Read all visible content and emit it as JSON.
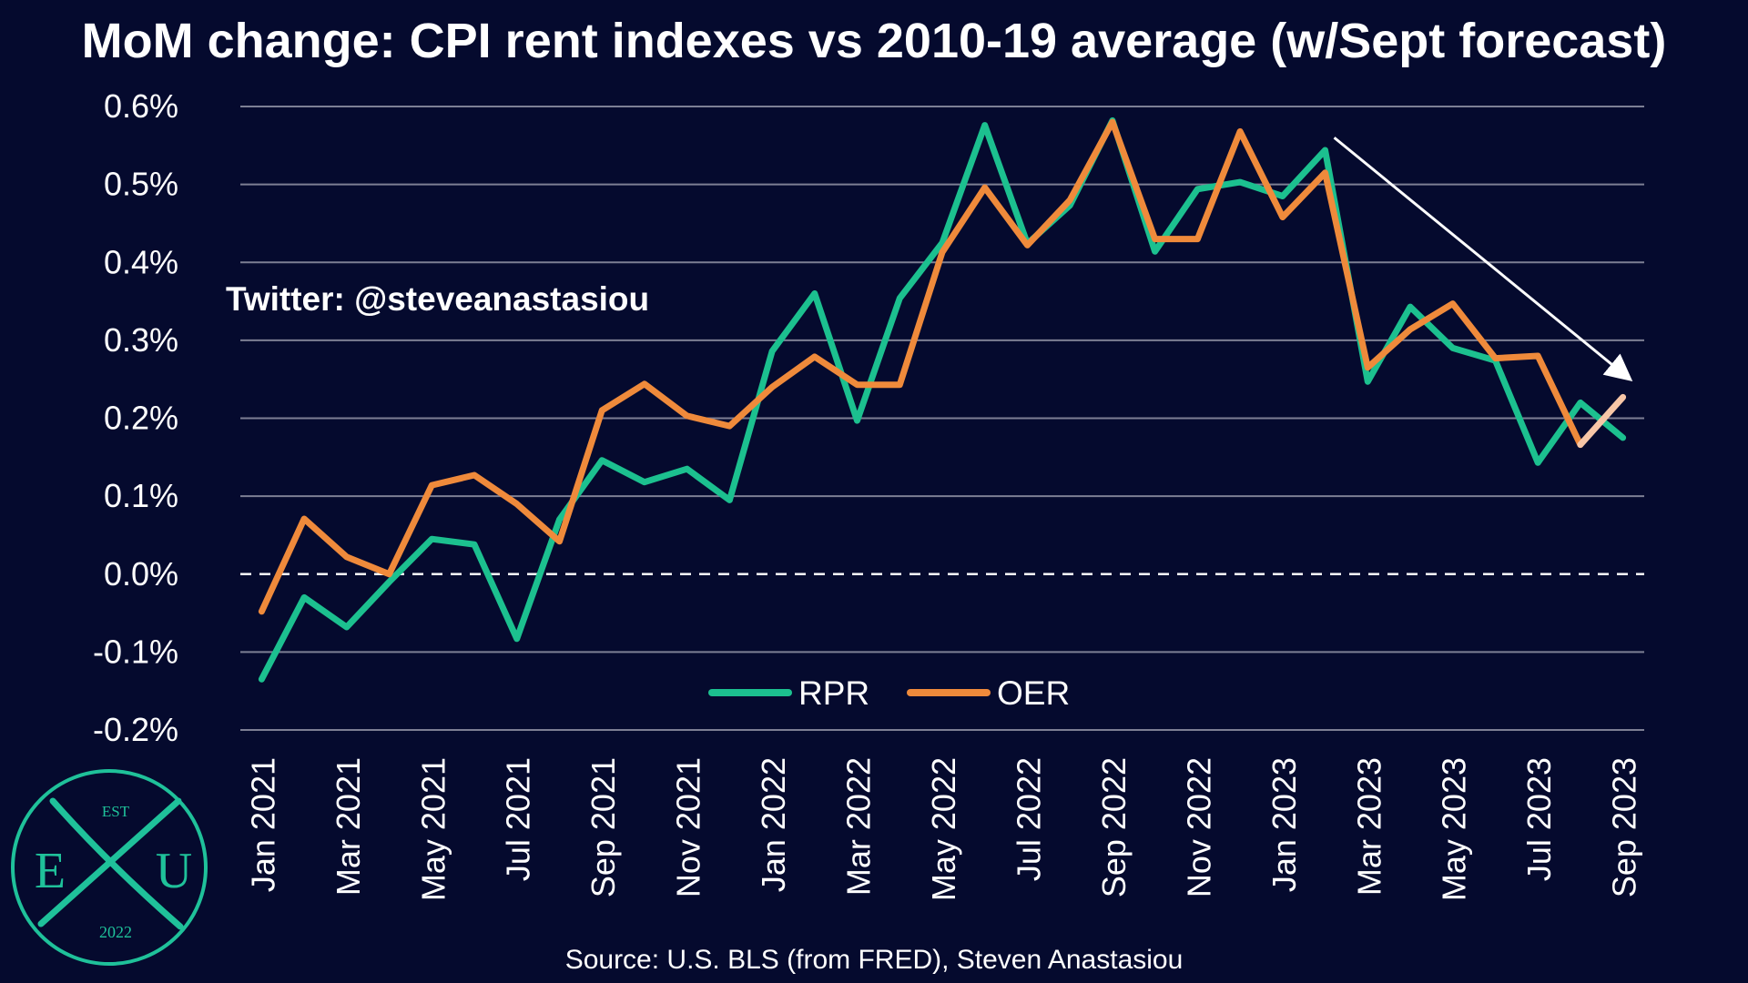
{
  "title": "MoM change: CPI rent indexes vs 2010-19 average (w/Sept forecast)",
  "watermark": "Twitter: @steveanastasiou",
  "source": "Source: U.S. BLS (from FRED), Steven Anastasiou",
  "logo": {
    "top_text": "EST",
    "left_letter": "E",
    "right_letter": "U",
    "bottom_text": "2022",
    "color": "#1fc19a"
  },
  "colors": {
    "background": "#050a2e",
    "grid": "#7d7f94",
    "rpr": "#1cc08f",
    "oer": "#ef8a3b",
    "forecast": "#f7c6a7",
    "text": "#ffffff"
  },
  "chart_data": {
    "type": "line",
    "title": "MoM change: CPI rent indexes vs 2010-19 average (w/Sept forecast)",
    "xlabel": "",
    "ylabel": "",
    "ylim": [
      -0.2,
      0.6
    ],
    "yticks": [
      -0.2,
      -0.1,
      0.0,
      0.1,
      0.2,
      0.3,
      0.4,
      0.5,
      0.6
    ],
    "ytick_labels": [
      "-0.2%",
      "-0.1%",
      "0.0%",
      "0.1%",
      "0.2%",
      "0.3%",
      "0.4%",
      "0.5%",
      "0.6%"
    ],
    "zero_line": "dashed",
    "grid": true,
    "legend_placement": "bottom-center",
    "x": [
      "Jan 2021",
      "Feb 2021",
      "Mar 2021",
      "Apr 2021",
      "May 2021",
      "Jun 2021",
      "Jul 2021",
      "Aug 2021",
      "Sep 2021",
      "Oct 2021",
      "Nov 2021",
      "Dec 2021",
      "Jan 2022",
      "Feb 2022",
      "Mar 2022",
      "Apr 2022",
      "May 2022",
      "Jun 2022",
      "Jul 2022",
      "Aug 2022",
      "Sep 2022",
      "Oct 2022",
      "Nov 2022",
      "Dec 2022",
      "Jan 2023",
      "Feb 2023",
      "Mar 2023",
      "Apr 2023",
      "May 2023",
      "Jun 2023",
      "Jul 2023",
      "Aug 2023",
      "Sep 2023"
    ],
    "tick_labels": [
      "Jan 2021",
      "Mar 2021",
      "May 2021",
      "Jul 2021",
      "Sep 2021",
      "Nov 2021",
      "Jan 2022",
      "Mar 2022",
      "May 2022",
      "Jul 2022",
      "Sep 2022",
      "Nov 2022",
      "Jan 2023",
      "Mar 2023",
      "May 2023",
      "Jul 2023",
      "Sep 2023"
    ],
    "series": [
      {
        "name": "RPR",
        "values": [
          -0.135,
          -0.03,
          -0.068,
          -0.01,
          0.045,
          0.038,
          -0.083,
          0.07,
          0.146,
          0.118,
          0.135,
          0.095,
          0.286,
          0.36,
          0.197,
          0.354,
          0.425,
          0.576,
          0.424,
          0.473,
          0.582,
          0.414,
          0.494,
          0.503,
          0.485,
          0.544,
          0.247,
          0.343,
          0.29,
          0.274,
          0.143,
          0.22,
          0.175
        ]
      },
      {
        "name": "OER",
        "values": [
          -0.048,
          0.071,
          0.022,
          0.0,
          0.114,
          0.127,
          0.09,
          0.042,
          0.21,
          0.244,
          0.203,
          0.19,
          0.24,
          0.279,
          0.243,
          0.243,
          0.413,
          0.496,
          0.422,
          0.48,
          0.58,
          0.43,
          0.43,
          0.568,
          0.458,
          0.515,
          0.265,
          0.314,
          0.347,
          0.277,
          0.28,
          0.166,
          0.227
        ]
      }
    ],
    "forecast": {
      "series": "OER",
      "from": "Aug 2023",
      "to": "Sep 2023"
    },
    "annotation": {
      "type": "arrow",
      "from": [
        "Feb 2023",
        0.56
      ],
      "to": [
        "Sep 2023",
        0.24
      ]
    }
  }
}
